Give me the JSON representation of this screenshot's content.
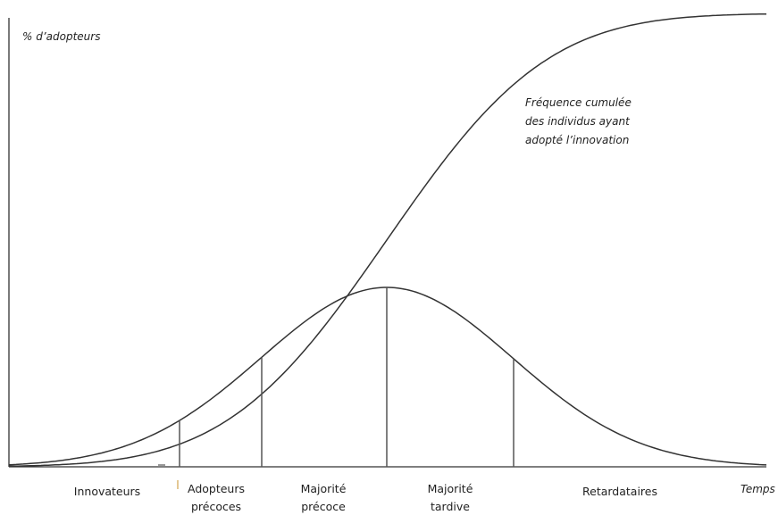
{
  "y_axis_label": "% d’adopteurs",
  "x_axis_label": "Temps",
  "curve_label": [
    "Fréquence cumulée",
    "des individus ayant",
    "adopté l’innovation"
  ],
  "segments": [
    {
      "label": [
        "Innovateurs"
      ]
    },
    {
      "label": [
        "Adopteurs",
        "précoces"
      ]
    },
    {
      "label": [
        "Majorité",
        "précoce"
      ]
    },
    {
      "label": [
        "Majorité",
        "tardive"
      ]
    },
    {
      "label": [
        "Retardataires"
      ]
    }
  ]
}
